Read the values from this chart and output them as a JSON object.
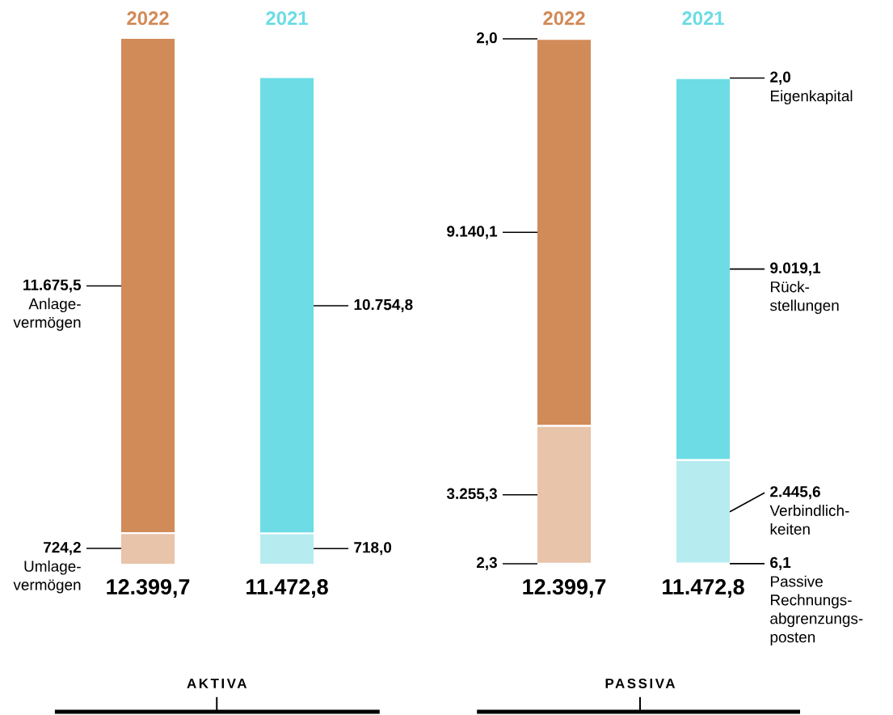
{
  "chart_data": [
    {
      "type": "bar",
      "stacked": true,
      "title": "AKTIVA",
      "categories": [
        "2022",
        "2021"
      ],
      "series": [
        {
          "name": "Umlage-vermögen",
          "colors": [
            "#e8c4aa",
            "#b6ecf0"
          ],
          "values": [
            724.2,
            718.0
          ],
          "value_labels": [
            "724,2",
            "718,0"
          ]
        },
        {
          "name": "Anlage-vermögen",
          "colors": [
            "#d18b59",
            "#6ddce5"
          ],
          "values": [
            11675.5,
            10754.8
          ],
          "value_labels": [
            "11.675,5",
            "10.754,8"
          ]
        }
      ],
      "totals": [
        "12.399,7",
        "11.472,8"
      ]
    },
    {
      "type": "bar",
      "stacked": true,
      "title": "PASSIVA",
      "categories": [
        "2022",
        "2021"
      ],
      "series": [
        {
          "name": "Passive Rechnungs-abgrenzungs-posten",
          "colors": [
            "#e8c4aa",
            "#b6ecf0"
          ],
          "values": [
            2.3,
            6.1
          ],
          "value_labels": [
            "2,3",
            "6,1"
          ]
        },
        {
          "name": "Verbindlich-keiten",
          "colors": [
            "#e8c4aa",
            "#b6ecf0"
          ],
          "values": [
            3255.3,
            2445.6
          ],
          "value_labels": [
            "3.255,3",
            "2.445,6"
          ]
        },
        {
          "name": "Rück-stellungen",
          "colors": [
            "#d18b59",
            "#6ddce5"
          ],
          "values": [
            9140.1,
            9019.1
          ],
          "value_labels": [
            "9.140,1",
            "9.019,1"
          ]
        },
        {
          "name": "Eigenkapital",
          "colors": [
            "#e8c4aa",
            "#b6ecf0"
          ],
          "values": [
            2.0,
            2.0
          ],
          "value_labels": [
            "2,0",
            "2,0"
          ]
        }
      ],
      "totals": [
        "12.399,7",
        "11.472,8"
      ]
    }
  ]
}
